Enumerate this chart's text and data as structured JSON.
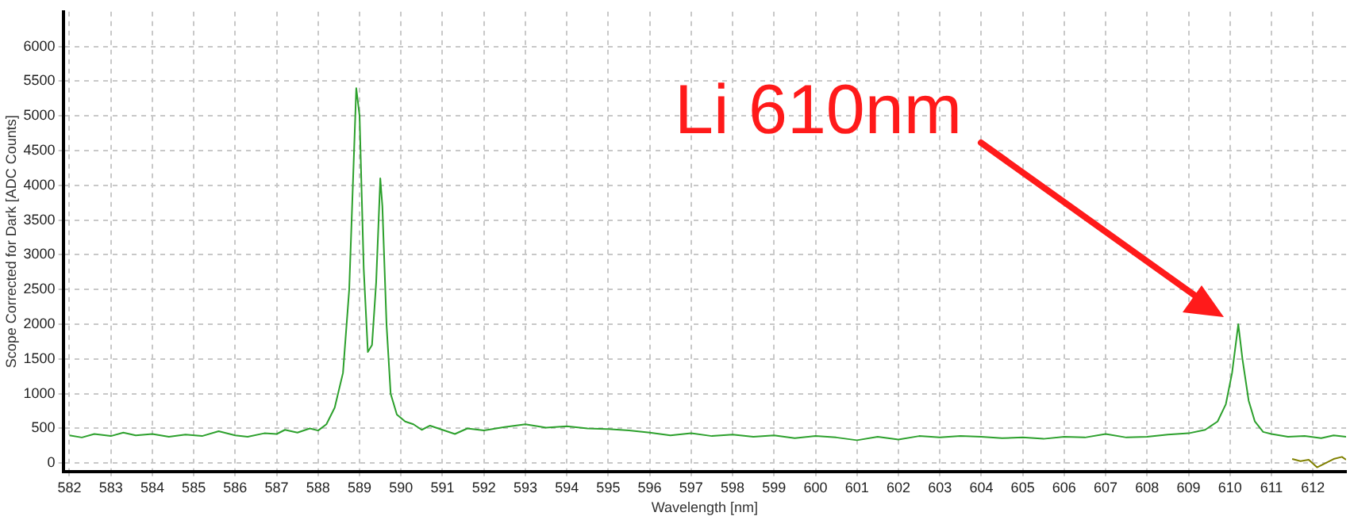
{
  "chart_data": {
    "type": "line",
    "xlabel": "Wavelength [nm]",
    "ylabel": "Scope Corrected for Dark [ADC Counts]",
    "xlim": [
      581.85,
      612.8
    ],
    "xticks": [
      582,
      583,
      584,
      585,
      586,
      587,
      588,
      589,
      590,
      591,
      592,
      593,
      594,
      595,
      596,
      597,
      598,
      599,
      600,
      601,
      602,
      603,
      604,
      605,
      606,
      607,
      608,
      609,
      610,
      611,
      612
    ],
    "ylim": [
      -120,
      6500
    ],
    "yticks": [
      0,
      500,
      1000,
      1500,
      2000,
      2500,
      3000,
      3500,
      4000,
      4500,
      5000,
      5500,
      6000
    ],
    "grid": true,
    "legend": false,
    "marker": "none",
    "line_style": "solid",
    "series": [
      {
        "color": "#2ca02c",
        "x": [
          582,
          582.3,
          582.6,
          583,
          583.3,
          583.6,
          584,
          584.4,
          584.8,
          585.2,
          585.6,
          586,
          586.3,
          586.7,
          587,
          587.2,
          587.5,
          587.8,
          588,
          588.2,
          588.4,
          588.6,
          588.75,
          588.85,
          588.92,
          589,
          589.1,
          589.2,
          589.3,
          589.4,
          589.5,
          589.55,
          589.65,
          589.75,
          589.9,
          590.1,
          590.3,
          590.5,
          590.7,
          591,
          591.3,
          591.6,
          592,
          592.5,
          593,
          593.5,
          594,
          594.5,
          595,
          595.5,
          596,
          596.5,
          597,
          597.5,
          598,
          598.5,
          599,
          599.5,
          600,
          600.5,
          601,
          601.5,
          602,
          602.5,
          603,
          603.5,
          604,
          604.5,
          605,
          605.5,
          606,
          606.5,
          607,
          607.5,
          608,
          608.5,
          609,
          609.4,
          609.7,
          609.9,
          610.05,
          610.2,
          610.3,
          610.45,
          610.6,
          610.8,
          611,
          611.4,
          611.8,
          612.2,
          612.5,
          612.8
        ],
        "values": [
          400,
          370,
          420,
          390,
          440,
          400,
          420,
          380,
          410,
          390,
          460,
          400,
          380,
          430,
          420,
          480,
          440,
          500,
          470,
          560,
          800,
          1300,
          2500,
          4200,
          5400,
          5000,
          2800,
          1600,
          1700,
          2600,
          4100,
          3700,
          2000,
          1000,
          700,
          600,
          560,
          480,
          540,
          480,
          420,
          500,
          470,
          520,
          560,
          510,
          530,
          500,
          490,
          470,
          440,
          400,
          430,
          390,
          410,
          380,
          400,
          360,
          390,
          370,
          330,
          380,
          340,
          390,
          370,
          390,
          380,
          360,
          370,
          350,
          380,
          370,
          420,
          370,
          380,
          410,
          430,
          480,
          600,
          850,
          1300,
          2000,
          1500,
          900,
          600,
          450,
          420,
          380,
          390,
          360,
          400,
          380
        ]
      },
      {
        "color": "#808000",
        "x": [
          611.5,
          611.7,
          611.9,
          612.1,
          612.3,
          612.5,
          612.7,
          612.8
        ],
        "values": [
          60,
          30,
          50,
          -60,
          0,
          60,
          90,
          50
        ]
      }
    ],
    "annotations": [
      "Li 610nm"
    ]
  }
}
